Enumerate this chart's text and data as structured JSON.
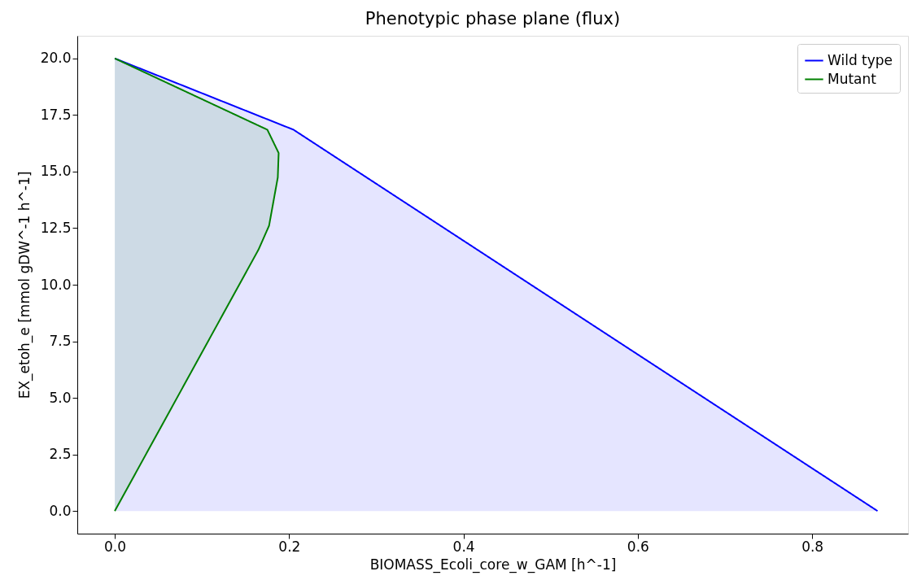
{
  "chart_data": {
    "type": "area",
    "title": "Phenotypic phase plane (flux)",
    "xlabel": "BIOMASS_Ecoli_core_w_GAM [h^-1]",
    "ylabel": "EX_etoh_e [mmol gDW^-1 h^-1]",
    "series": [
      {
        "name": "Wild type",
        "color": "#0000ff",
        "x": [
          0,
          0.205,
          0.875
        ],
        "values": [
          20,
          16.85,
          0
        ]
      },
      {
        "name": "Mutant",
        "color": "#008000",
        "x": [
          0,
          0.175,
          0.188,
          0.187,
          0.177,
          0.165,
          0
        ],
        "values": [
          20,
          16.85,
          15.82,
          14.74,
          12.61,
          11.56,
          0
        ]
      }
    ],
    "xlim": [
      -0.043,
      0.91
    ],
    "ylim": [
      -1.0,
      21.0
    ],
    "xticks": [
      {
        "value": 0,
        "label": "0.0"
      },
      {
        "value": 0.2,
        "label": "0.2"
      },
      {
        "value": 0.4,
        "label": "0.4"
      },
      {
        "value": 0.6,
        "label": "0.6"
      },
      {
        "value": 0.8,
        "label": "0.8"
      }
    ],
    "yticks": [
      {
        "value": 0,
        "label": "0.0"
      },
      {
        "value": 2.5,
        "label": "2.5"
      },
      {
        "value": 5,
        "label": "5.0"
      },
      {
        "value": 7.5,
        "label": "7.5"
      },
      {
        "value": 10,
        "label": "10.0"
      },
      {
        "value": 12.5,
        "label": "12.5"
      },
      {
        "value": 15,
        "label": "15.0"
      },
      {
        "value": 17.5,
        "label": "17.5"
      },
      {
        "value": 20,
        "label": "20.0"
      }
    ],
    "legend": "top right",
    "grid": false
  }
}
